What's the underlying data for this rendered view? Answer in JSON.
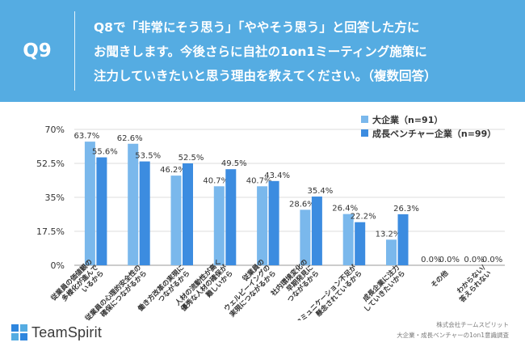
{
  "header": {
    "qnum": "Q9",
    "question": "Q8で「非常にそう思う」「ややそう思う」と回答した方に\nお聞きします。今後さらに自社の1on1ミーティング施策に\n注力していきたいと思う理由を教えてください。（複数回答）"
  },
  "chart_data": {
    "type": "bar",
    "categories": [
      "従業員の価値観の多様化が進んでいるから",
      "従業員の心理的安全性の確保につながるから",
      "働き方改革の実現につながるから",
      "人材の流動性が高く優秀な人材の確保が難しいから",
      "従業員のウェルビーイングの実現につながるから",
      "社内環境変化の早期発見につながるから",
      "コミュニケーション不足が懸念されているから",
      "成長企業に注力していきたいから",
      "その他",
      "わからない/答えられない"
    ],
    "category_lines": [
      [
        "従業員の価値観の",
        "多様化が進んで",
        "いるから"
      ],
      [
        "従業員の心理的安全性の",
        "確保につながるから"
      ],
      [
        "働き方改革の実現に",
        "つながるから"
      ],
      [
        "人材の流動性が高く",
        "優秀な人材の確保が",
        "難しいから"
      ],
      [
        "従業員の",
        "ウェルビーイングの",
        "実現につながるから"
      ],
      [
        "社内環境変化の",
        "早期発見に",
        "つながるから"
      ],
      [
        "コミュニケーション不足が",
        "懸念されているから"
      ],
      [
        "成長企業に注力",
        "していきたいから"
      ],
      [
        "その他"
      ],
      [
        "わからない/",
        "答えられない"
      ]
    ],
    "series": [
      {
        "name": "大企業（n=91）",
        "color": "#7ab8ec",
        "values": [
          63.7,
          62.6,
          46.2,
          40.7,
          40.7,
          28.6,
          26.4,
          13.2,
          0.0,
          0.0
        ]
      },
      {
        "name": "成長ベンチャー企業（n=99）",
        "color": "#3c8ce0",
        "values": [
          55.6,
          53.5,
          52.5,
          49.5,
          43.4,
          35.4,
          22.2,
          26.3,
          0.0,
          0.0
        ]
      }
    ],
    "value_labels": [
      [
        "63.7%",
        "62.6%",
        "46.2%",
        "40.7%",
        "40.7%",
        "28.6%",
        "26.4%",
        "13.2%",
        "0.0%",
        "0.0%"
      ],
      [
        "55.6%",
        "53.5%",
        "52.5%",
        "49.5%",
        "43.4%",
        "35.4%",
        "22.2%",
        "26.3%",
        "0.0%",
        "0.0%"
      ]
    ],
    "yticks": [
      "0%",
      "17.5%",
      "35%",
      "52.5%",
      "70%"
    ],
    "ylim": [
      0,
      70
    ],
    "grid": true,
    "legend_position": "top-right"
  },
  "footer": {
    "brand": "TeamSpirit",
    "source_line1": "株式会社チームスピリット",
    "source_line2": "大企業・成長ベンチャーの1on1意識調査"
  },
  "colors": {
    "header_bg": "#55ace2"
  }
}
